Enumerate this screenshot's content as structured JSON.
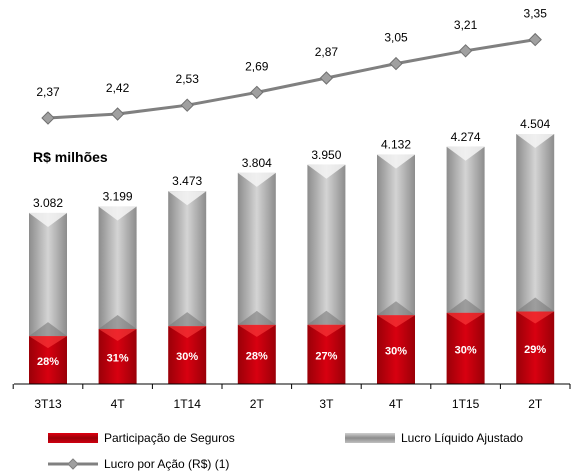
{
  "chart_data": {
    "type": "bar",
    "unit_label": "R$ milhões",
    "categories": [
      "3T13",
      "4T",
      "1T14",
      "2T",
      "3T",
      "4T",
      "1T15",
      "2T"
    ],
    "bar_totals": [
      3082,
      3199,
      3473,
      3804,
      3950,
      4132,
      4274,
      4504
    ],
    "bar_total_labels": [
      "3.082",
      "3.199",
      "3.473",
      "3.804",
      "3.950",
      "4.132",
      "4.274",
      "4.504"
    ],
    "insurance_share_labels": [
      "28%",
      "31%",
      "30%",
      "28%",
      "27%",
      "30%",
      "30%",
      "29%"
    ],
    "insurance_share": [
      28,
      31,
      30,
      28,
      27,
      30,
      30,
      29
    ],
    "eps": [
      2.37,
      2.42,
      2.53,
      2.69,
      2.87,
      3.05,
      3.21,
      3.35
    ],
    "eps_labels": [
      "2,37",
      "2,42",
      "2,53",
      "2,69",
      "2,87",
      "3,05",
      "3,21",
      "3,35"
    ],
    "series": [
      {
        "name": "Participação de Seguros",
        "color": "#c8000a"
      },
      {
        "name": "Lucro Líquido Ajustado",
        "color": "#a6a6a6"
      },
      {
        "name": "Lucro por Ação (R$) (1)",
        "color": "#808080"
      }
    ],
    "legend_position": "bottom",
    "grid": false
  }
}
